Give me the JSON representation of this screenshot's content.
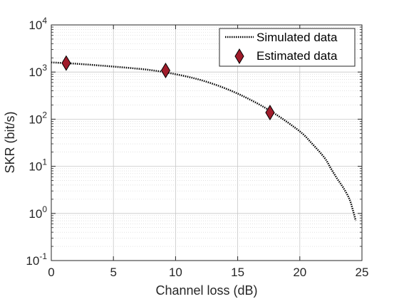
{
  "chart_data": {
    "type": "line",
    "title": "",
    "xlabel": "Channel loss (dB)",
    "ylabel": "SKR (bit/s)",
    "xlim": [
      0,
      25
    ],
    "ylim": [
      0.1,
      10000
    ],
    "y_scale": "log",
    "grid": true,
    "minor_grid": true,
    "legend_position": "top-right",
    "x_ticks": [
      "0",
      "5",
      "10",
      "15",
      "20",
      "25"
    ],
    "y_ticks": [
      {
        "base": "10",
        "exp": "-1",
        "value": 0.1
      },
      {
        "base": "10",
        "exp": "0",
        "value": 1
      },
      {
        "base": "10",
        "exp": "1",
        "value": 10
      },
      {
        "base": "10",
        "exp": "2",
        "value": 100
      },
      {
        "base": "10",
        "exp": "3",
        "value": 1000
      },
      {
        "base": "10",
        "exp": "4",
        "value": 10000
      }
    ],
    "series": [
      {
        "name": "Simulated data",
        "style": "dotted-line",
        "color": "#000000",
        "x": [
          0,
          2,
          4,
          6,
          8,
          10,
          12,
          14,
          16,
          18,
          20,
          21,
          22,
          22.5,
          23,
          23.5,
          24,
          24.3,
          24.5
        ],
        "y": [
          1600,
          1500,
          1370,
          1240,
          1100,
          900,
          680,
          450,
          260,
          130,
          55,
          30,
          15,
          9,
          5.5,
          3.5,
          2.0,
          1.1,
          0.7
        ]
      },
      {
        "name": "Estimated data",
        "style": "diamond-markers",
        "color": "#a01c2b",
        "x": [
          1.2,
          9.2,
          17.6
        ],
        "y": [
          1550,
          1080,
          138
        ]
      }
    ]
  }
}
